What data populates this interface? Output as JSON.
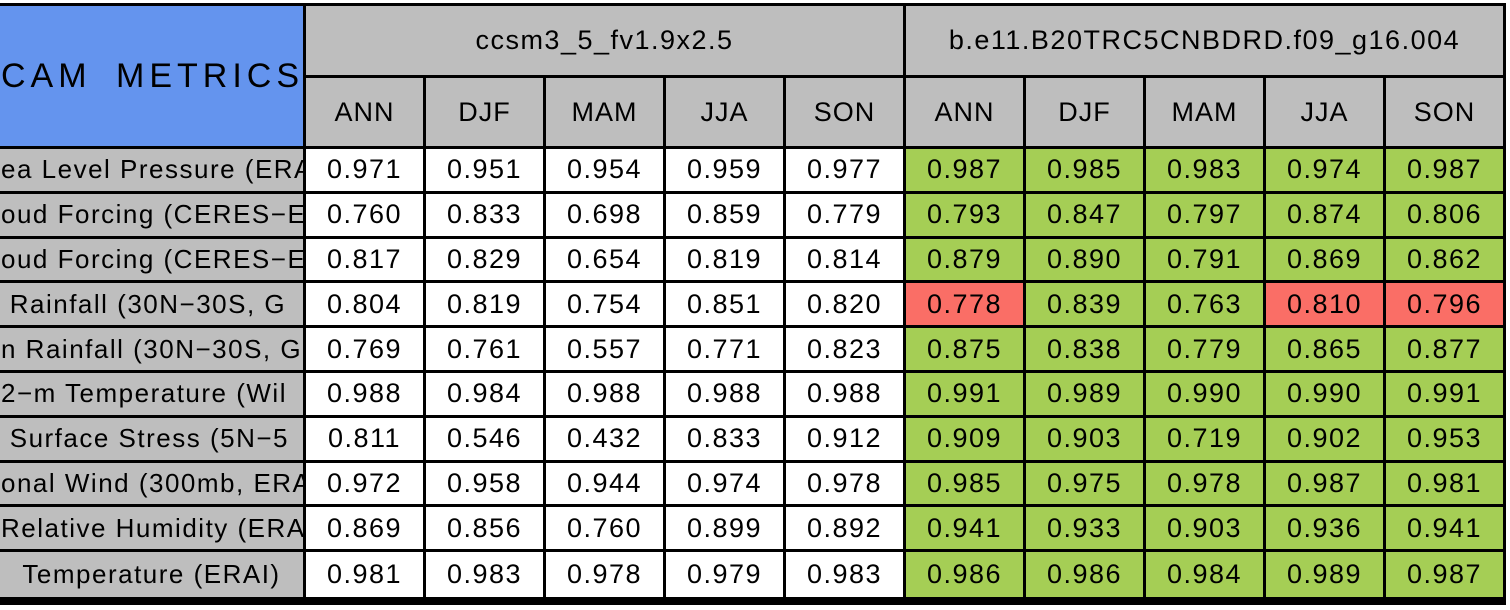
{
  "title": "CAM METRICS",
  "models": [
    {
      "name": "ccsm3_5_fv1.9x2.5"
    },
    {
      "name": "b.e11.B20TRC5CNBDRD.f09_g16.004"
    }
  ],
  "seasons": [
    "ANN",
    "DJF",
    "MAM",
    "JJA",
    "SON"
  ],
  "colors": {
    "title_background": "#6494EE",
    "header_background": "#BEBEBE",
    "label_background": "#BEBEBE",
    "better_cell": "#A5CE55",
    "worse_cell": "#FA6E66",
    "neutral_cell": "#FFFFFF",
    "border": "#000000",
    "text": "#000000"
  },
  "chart_data": {
    "type": "table",
    "title": "CAM METRICS",
    "column_groups": [
      "ccsm3_5_fv1.9x2.5",
      "b.e11.B20TRC5CNBDRD.f09_g16.004"
    ],
    "columns": [
      "ANN",
      "DJF",
      "MAM",
      "JJA",
      "SON"
    ],
    "legend": {
      "better": "green",
      "worse": "red",
      "reference": "white"
    },
    "rows": [
      {
        "label": "ea Level Pressure (ERAI",
        "label_align": "left",
        "model1": [
          "0.971",
          "0.951",
          "0.954",
          "0.959",
          "0.977"
        ],
        "model2": [
          "0.987",
          "0.985",
          "0.983",
          "0.974",
          "0.987"
        ],
        "model2_status": [
          "better",
          "better",
          "better",
          "better",
          "better"
        ]
      },
      {
        "label": "oud Forcing (CERES−E",
        "label_align": "left",
        "model1": [
          "0.760",
          "0.833",
          "0.698",
          "0.859",
          "0.779"
        ],
        "model2": [
          "0.793",
          "0.847",
          "0.797",
          "0.874",
          "0.806"
        ],
        "model2_status": [
          "better",
          "better",
          "better",
          "better",
          "better"
        ]
      },
      {
        "label": "oud Forcing (CERES−E",
        "label_align": "left",
        "model1": [
          "0.817",
          "0.829",
          "0.654",
          "0.819",
          "0.814"
        ],
        "model2": [
          "0.879",
          "0.890",
          "0.791",
          "0.869",
          "0.862"
        ],
        "model2_status": [
          "better",
          "better",
          "better",
          "better",
          "better"
        ]
      },
      {
        "label": " Rainfall (30N−30S, G",
        "label_align": "left",
        "model1": [
          "0.804",
          "0.819",
          "0.754",
          "0.851",
          "0.820"
        ],
        "model2": [
          "0.778",
          "0.839",
          "0.763",
          "0.810",
          "0.796"
        ],
        "model2_status": [
          "worse",
          "better",
          "better",
          "worse",
          "worse"
        ]
      },
      {
        "label": "n Rainfall (30N−30S, G",
        "label_align": "left",
        "model1": [
          "0.769",
          "0.761",
          "0.557",
          "0.771",
          "0.823"
        ],
        "model2": [
          "0.875",
          "0.838",
          "0.779",
          "0.865",
          "0.877"
        ],
        "model2_status": [
          "better",
          "better",
          "better",
          "better",
          "better"
        ]
      },
      {
        "label": "2−m Temperature (Wil",
        "label_align": "left",
        "model1": [
          "0.988",
          "0.984",
          "0.988",
          "0.988",
          "0.988"
        ],
        "model2": [
          "0.991",
          "0.989",
          "0.990",
          "0.990",
          "0.991"
        ],
        "model2_status": [
          "better",
          "better",
          "better",
          "better",
          "better"
        ]
      },
      {
        "label": " Surface Stress (5N−5",
        "label_align": "left",
        "model1": [
          "0.811",
          "0.546",
          "0.432",
          "0.833",
          "0.912"
        ],
        "model2": [
          "0.909",
          "0.903",
          "0.719",
          "0.902",
          "0.953"
        ],
        "model2_status": [
          "better",
          "better",
          "better",
          "better",
          "better"
        ]
      },
      {
        "label": "onal Wind (300mb, ERA",
        "label_align": "left",
        "model1": [
          "0.972",
          "0.958",
          "0.944",
          "0.974",
          "0.978"
        ],
        "model2": [
          "0.985",
          "0.975",
          "0.978",
          "0.987",
          "0.981"
        ],
        "model2_status": [
          "better",
          "better",
          "better",
          "better",
          "better"
        ]
      },
      {
        "label": "Relative Humidity (ERAI",
        "label_align": "left",
        "model1": [
          "0.869",
          "0.856",
          "0.760",
          "0.899",
          "0.892"
        ],
        "model2": [
          "0.941",
          "0.933",
          "0.903",
          "0.936",
          "0.941"
        ],
        "model2_status": [
          "better",
          "better",
          "better",
          "better",
          "better"
        ]
      },
      {
        "label": "Temperature (ERAI)",
        "label_align": "center",
        "model1": [
          "0.981",
          "0.983",
          "0.978",
          "0.979",
          "0.983"
        ],
        "model2": [
          "0.986",
          "0.986",
          "0.984",
          "0.989",
          "0.987"
        ],
        "model2_status": [
          "better",
          "better",
          "better",
          "better",
          "better"
        ]
      }
    ]
  }
}
